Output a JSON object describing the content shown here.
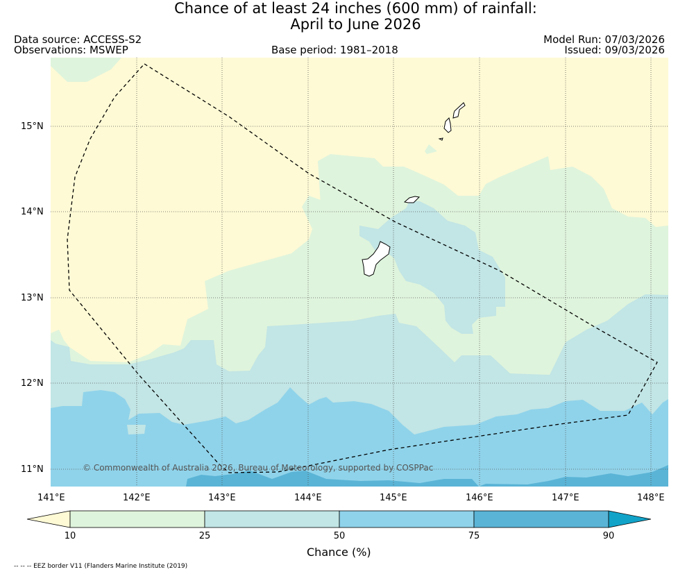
{
  "title": {
    "line1": "Chance of at least 24 inches (600  mm) of rainfall:",
    "line2": "April to June 2026"
  },
  "meta": {
    "data_source": "Data source: ACCESS-S2",
    "observations": "Observations: MSWEP",
    "base_period": "Base period: 1981–2018",
    "model_run": "Model Run: 07/03/2026",
    "issued": "Issued: 09/03/2026"
  },
  "map": {
    "lon_ticks": [
      "141°E",
      "142°E",
      "143°E",
      "144°E",
      "145°E",
      "146°E",
      "147°E",
      "148°E"
    ],
    "lat_ticks": [
      "15°N",
      "14°N",
      "13°N",
      "12°N",
      "11°N"
    ],
    "copyright": "© Commonwealth of Australia 2026, Bureau of Meteorology, supported by COSPPac"
  },
  "colorbar": {
    "title": "Chance (%)",
    "labels": [
      "10",
      "25",
      "50",
      "75",
      "90"
    ],
    "colors": [
      "#fefad5",
      "#dff4dc",
      "#c2e5e5",
      "#8fd3ea",
      "#5ab4d6",
      "#12a3c9"
    ]
  },
  "legend_note": "-- -- -- EEZ border V11 (Flanders Marine Institute (2019)"
}
